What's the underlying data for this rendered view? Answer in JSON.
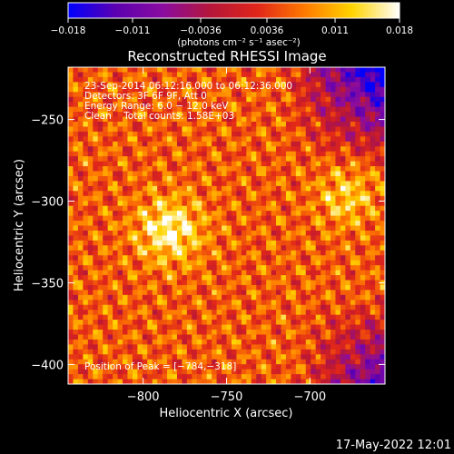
{
  "chart_data": {
    "type": "heatmap",
    "title": "Reconstructed RHESSI Image",
    "xlabel": "Heliocentric X (arcsec)",
    "ylabel": "Heliocentric Y (arcsec)",
    "xlim": [
      -845,
      -655
    ],
    "ylim": [
      -412,
      -218
    ],
    "x_ticks": [
      -800,
      -750,
      -700
    ],
    "x_tick_labels": [
      "−800",
      "−750",
      "−700"
    ],
    "y_ticks": [
      -250,
      -300,
      -350,
      -400
    ],
    "y_tick_labels": [
      "−250",
      "−300",
      "−350",
      "−400"
    ],
    "colorbar": {
      "range": [
        -0.018,
        0.018
      ],
      "ticks": [
        -0.018,
        -0.011,
        -0.0036,
        0.0036,
        0.011,
        0.018
      ],
      "tick_labels": [
        "−0.018",
        "−0.011",
        "−0.0036",
        "0.0036",
        "0.011",
        "0.018"
      ],
      "units_label": "(photons cm⁻² s⁻¹ asec⁻²)",
      "colormap": [
        "#0000ff",
        "#5b00b0",
        "#8a0ca0",
        "#b5163a",
        "#e0261a",
        "#ff7a00",
        "#ffd400",
        "#ffffff"
      ]
    },
    "annotations": [
      "23-Sep-2014 06:12:16.000 to 06:12:36.000",
      "Detectors: 3F 6F 9F, Att 0",
      "Energy Range: 6.0 − 12.0 keV",
      "Clean    Total counts: 1.58E+03"
    ],
    "peak_label": "Position of Peak = [−784,−318]",
    "peak": {
      "x": -784,
      "y": -318
    },
    "secondary_peak": {
      "x": -678,
      "y": -298
    },
    "timestamp": "17-May-2022 12:01"
  }
}
